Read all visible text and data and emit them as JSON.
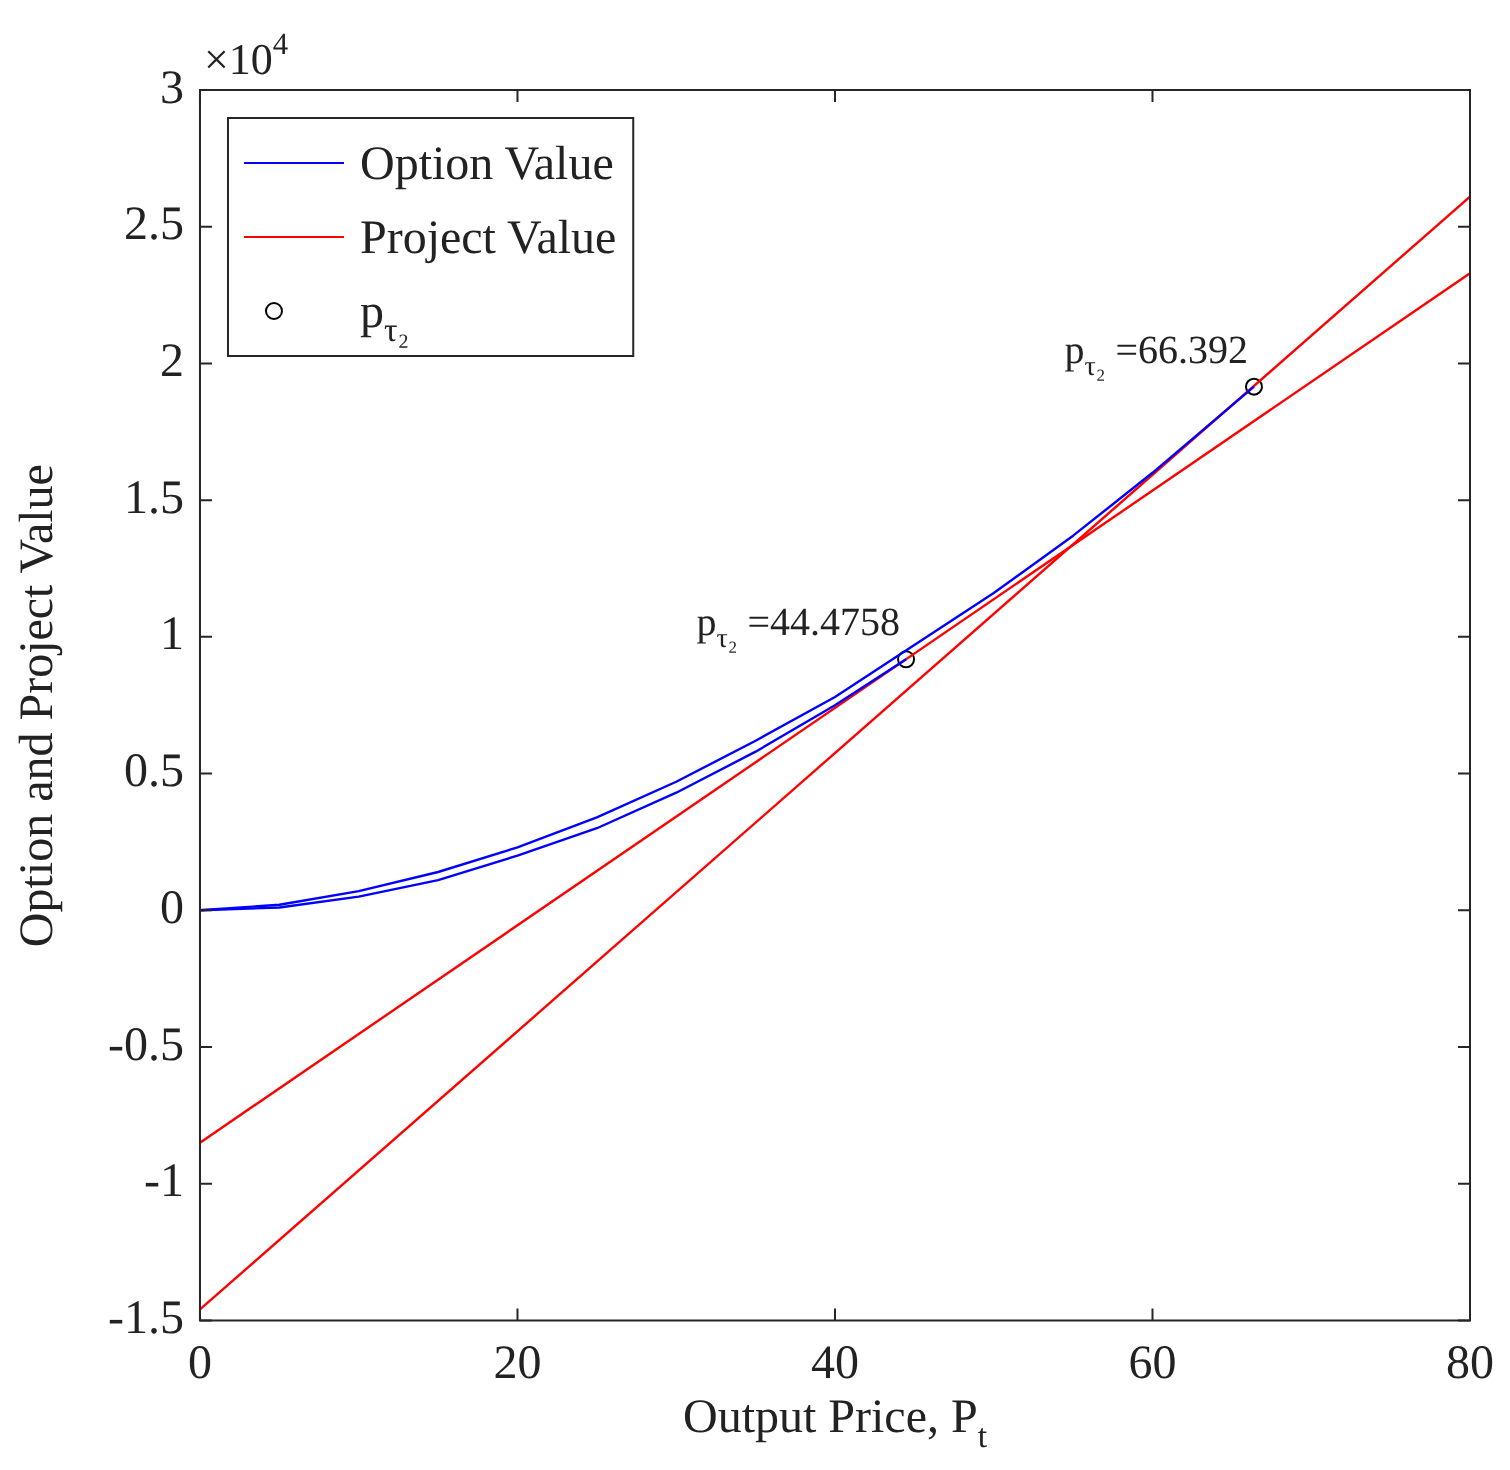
{
  "chart_data": {
    "type": "line",
    "xlabel": "Output Price, P$_{t}$",
    "ylabel": "Option and Project Value",
    "xlim": [
      0,
      80
    ],
    "xticks": [
      0,
      20,
      40,
      60,
      80
    ],
    "ylim": [
      -1.5,
      3
    ],
    "yticks": [
      -1.5,
      -1,
      -0.5,
      0,
      0.5,
      1,
      1.5,
      2,
      2.5,
      3
    ],
    "grid": false,
    "legend": "top left",
    "line_style": "solid",
    "series": [
      {
        "name": "Option Value",
        "color": "#0000ff",
        "x": [
          0,
          5,
          10,
          15,
          20,
          25,
          30,
          35,
          40,
          45,
          50,
          55,
          60,
          66.392
        ],
        "values": [
          0,
          0.02,
          0.07,
          0.14,
          0.23,
          0.34,
          0.47,
          0.62,
          0.78,
          0.97,
          1.16,
          1.37,
          1.6,
          1.915
        ]
      },
      {
        "color": "#0000ff",
        "x": [
          0,
          5,
          10,
          15,
          20,
          25,
          30,
          35,
          40,
          44.4758
        ],
        "values": [
          0,
          0.01,
          0.05,
          0.11,
          0.2,
          0.3,
          0.43,
          0.58,
          0.75,
          0.918
        ]
      },
      {
        "name": "Project Value",
        "color": "#ff0000",
        "x": [
          0,
          80
        ],
        "values": [
          -0.85,
          2.33
        ]
      },
      {
        "color": "#ff0000",
        "x": [
          0,
          80
        ],
        "values": [
          -1.46,
          2.61
        ]
      },
      {
        "name": "p$_{τ₂}$",
        "type": "scatter",
        "marker": "circle",
        "color": "#000000",
        "x": [
          44.4758,
          66.392
        ],
        "values": [
          0.918,
          1.915
        ]
      }
    ],
    "annotations": [
      "×10$^{4}$",
      {
        "text": "p$_{τ₂}$ =44.4758",
        "x": 44.4758,
        "y": 0.918
      },
      {
        "text": "p$_{τ₂}$ =66.392",
        "x": 66.392,
        "y": 1.915
      }
    ]
  }
}
